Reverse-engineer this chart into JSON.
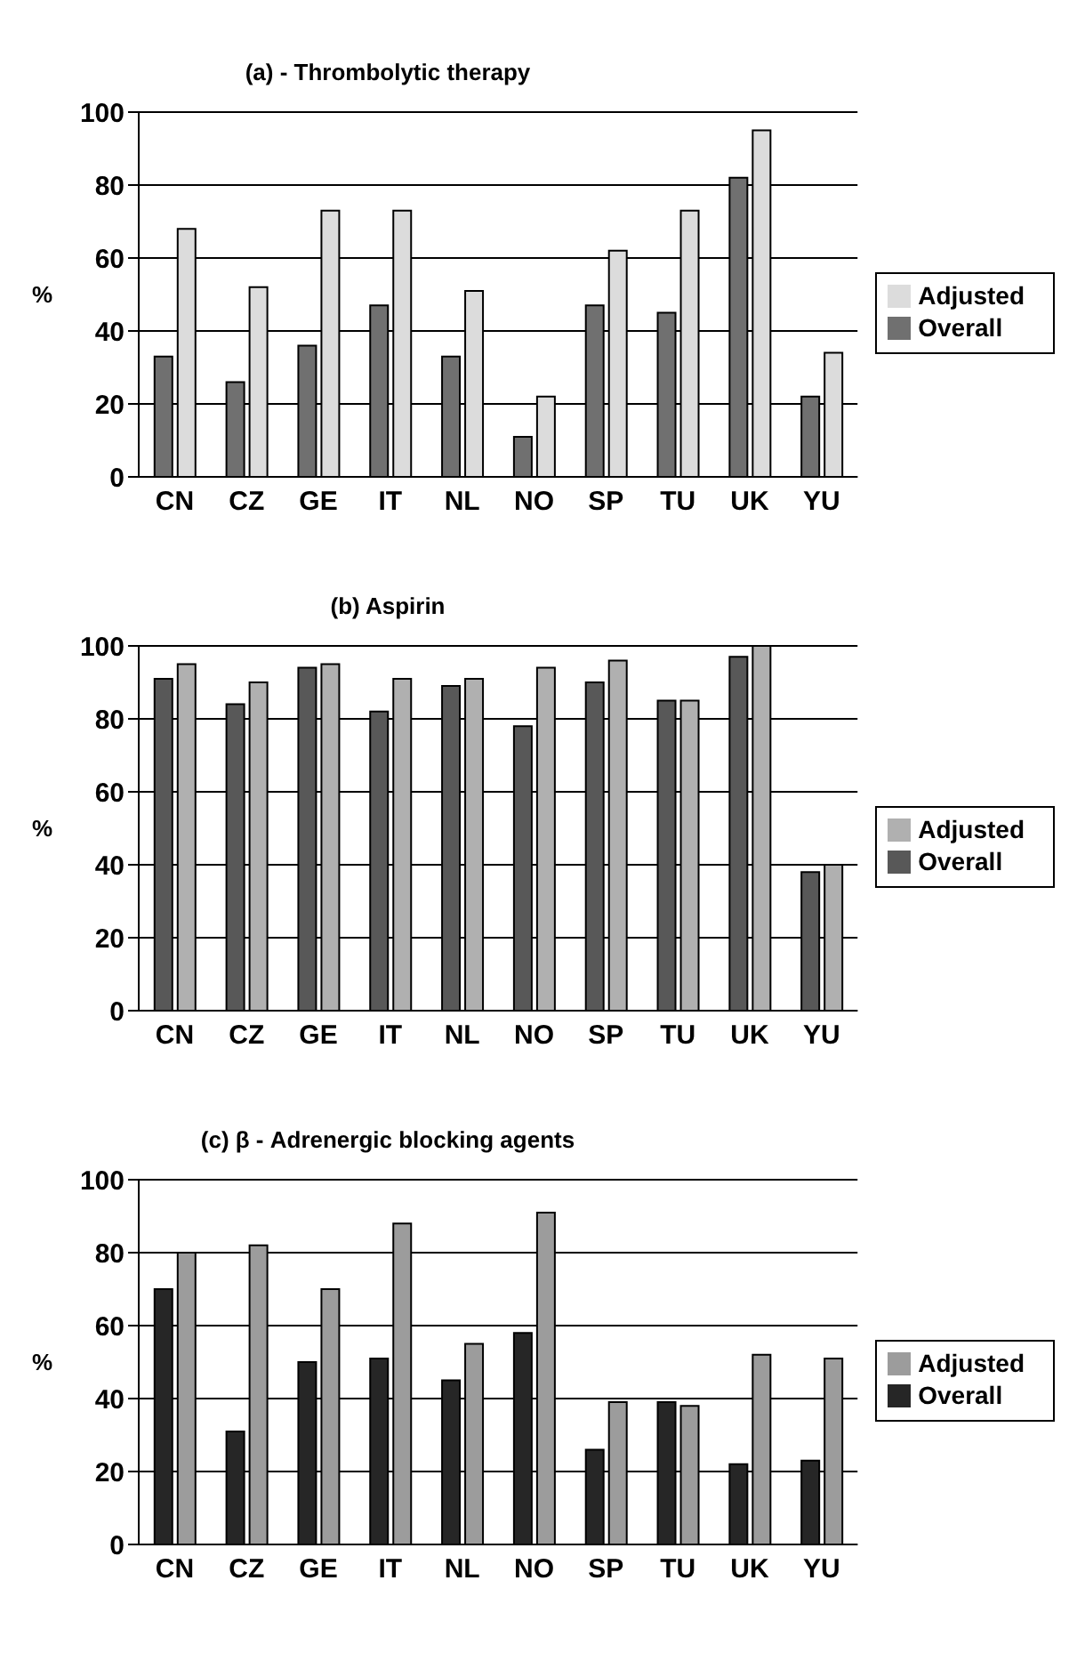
{
  "chart_data": [
    {
      "type": "bar",
      "title": "(a) - Thrombolytic therapy",
      "ylabel": "%",
      "categories": [
        "CN",
        "CZ",
        "GE",
        "IT",
        "NL",
        "NO",
        "SP",
        "TU",
        "UK",
        "YU"
      ],
      "series": [
        {
          "name": "Overall",
          "color": "#707070",
          "values": [
            33,
            26,
            36,
            47,
            33,
            11,
            47,
            45,
            82,
            22
          ]
        },
        {
          "name": "Adjusted",
          "color": "#dcdcdc",
          "values": [
            68,
            52,
            73,
            73,
            51,
            22,
            62,
            73,
            95,
            34
          ]
        }
      ],
      "ylim": [
        0,
        100
      ],
      "yticks": [
        0,
        20,
        40,
        60,
        80,
        100
      ],
      "grid": "y",
      "legend": "right"
    },
    {
      "type": "bar",
      "title": "(b) Aspirin",
      "ylabel": "%",
      "categories": [
        "CN",
        "CZ",
        "GE",
        "IT",
        "NL",
        "NO",
        "SP",
        "TU",
        "UK",
        "YU"
      ],
      "series": [
        {
          "name": "Overall",
          "color": "#585858",
          "values": [
            91,
            84,
            94,
            82,
            89,
            78,
            90,
            85,
            97,
            38
          ]
        },
        {
          "name": "Adjusted",
          "color": "#b0b0b0",
          "values": [
            95,
            90,
            95,
            91,
            91,
            94,
            96,
            85,
            100,
            40
          ]
        }
      ],
      "ylim": [
        0,
        100
      ],
      "yticks": [
        0,
        20,
        40,
        60,
        80,
        100
      ],
      "grid": "y",
      "legend": "right"
    },
    {
      "type": "bar",
      "title": "(c) β - Adrenergic blocking agents",
      "ylabel": "%",
      "categories": [
        "CN",
        "CZ",
        "GE",
        "IT",
        "NL",
        "NO",
        "SP",
        "TU",
        "UK",
        "YU"
      ],
      "series": [
        {
          "name": "Overall",
          "color": "#262626",
          "values": [
            70,
            31,
            50,
            51,
            45,
            58,
            26,
            39,
            22,
            23
          ]
        },
        {
          "name": "Adjusted",
          "color": "#9c9c9c",
          "values": [
            80,
            82,
            70,
            88,
            55,
            91,
            39,
            38,
            52,
            51
          ]
        }
      ],
      "ylim": [
        0,
        100
      ],
      "yticks": [
        0,
        20,
        40,
        60,
        80,
        100
      ],
      "grid": "y",
      "legend": "right"
    }
  ]
}
